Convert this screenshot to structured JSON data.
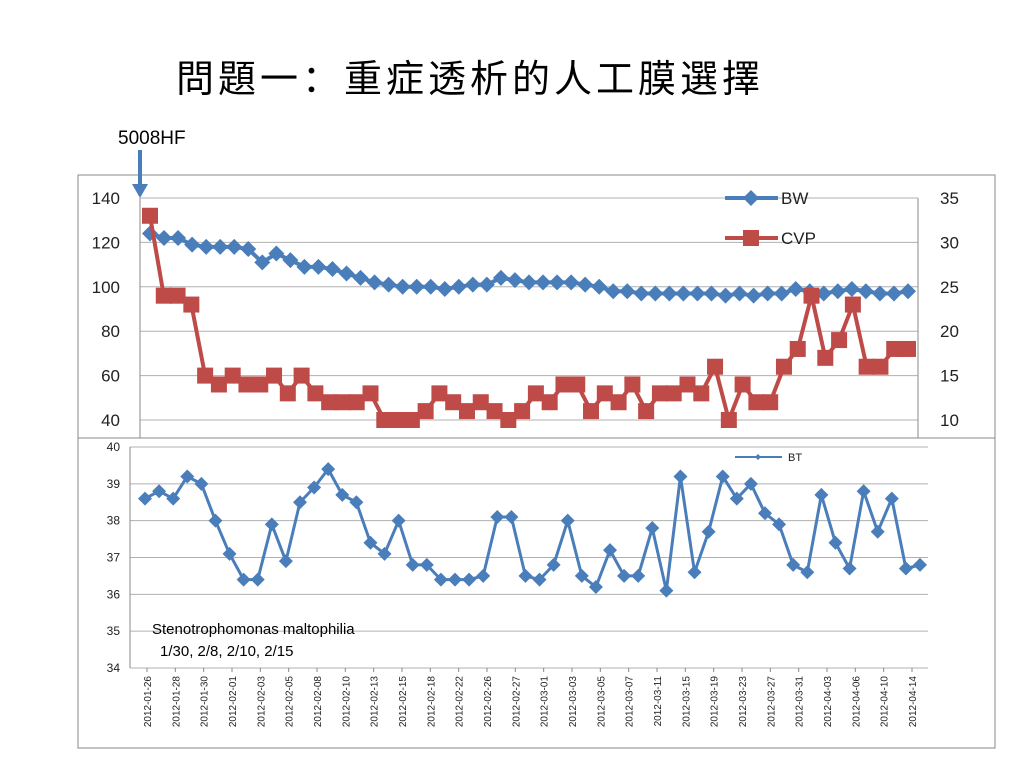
{
  "slide": {
    "title": "問題一：重症透析的人工膜選擇",
    "callout_label": "5008HF",
    "annotation_lines": [
      "Stenotrophomonas maltophilia",
      "1/30, 2/8, 2/10, 2/15"
    ]
  },
  "chart_data": [
    {
      "type": "line",
      "x_ticks": [
        "2012-01-26",
        "2012-01-28",
        "2012-01-30",
        "2012-02-01",
        "2012-02-03",
        "2012-02-05",
        "2012-02-08",
        "2012-02-10",
        "2012-02-13",
        "2012-02-15",
        "2012-02-18",
        "2012-02-22",
        "2012-02-26",
        "2012-02-27",
        "2012-03-01",
        "2012-03-03",
        "2012-03-05",
        "2012-03-07",
        "2012-03-11",
        "2012-03-15",
        "2012-03-19",
        "2012-03-23",
        "2012-03-27",
        "2012-03-31",
        "2012-04-03",
        "2012-04-06",
        "2012-04-10",
        "2012-04-14"
      ],
      "left_axis": {
        "ylim": [
          40,
          140
        ],
        "ticks": [
          40,
          60,
          80,
          100,
          120,
          140
        ]
      },
      "right_axis": {
        "ylim": [
          10,
          35
        ],
        "ticks": [
          10,
          15,
          20,
          25,
          30,
          35
        ]
      },
      "legend": "top-right",
      "series": [
        {
          "name": "BW",
          "axis": "left",
          "color": "#4a7ebb",
          "marker": "diamond",
          "values": [
            124,
            122,
            122,
            119,
            118,
            118,
            118,
            117,
            111,
            115,
            112,
            109,
            109,
            108,
            106,
            104,
            102,
            101,
            100,
            100,
            100,
            99,
            100,
            101,
            101,
            104,
            103,
            102,
            102,
            102,
            102,
            101,
            100,
            98,
            98,
            97,
            97,
            97,
            97,
            97,
            97,
            96,
            97,
            96,
            97,
            97,
            99,
            98,
            97,
            98,
            99,
            98,
            97,
            97,
            98
          ]
        },
        {
          "name": "CVP",
          "axis": "right",
          "color": "#be4b48",
          "marker": "square",
          "values": [
            33,
            24,
            24,
            23,
            15,
            14,
            15,
            14,
            14,
            15,
            13,
            15,
            13,
            12,
            12,
            12,
            13,
            10,
            10,
            10,
            11,
            13,
            12,
            11,
            12,
            11,
            10,
            11,
            13,
            12,
            14,
            14,
            11,
            13,
            12,
            14,
            11,
            13,
            13,
            14,
            13,
            16,
            10,
            14,
            12,
            12,
            16,
            18,
            24,
            17,
            19,
            23,
            16,
            16,
            18,
            18
          ]
        }
      ]
    },
    {
      "type": "line",
      "ylim": [
        34,
        40
      ],
      "y_ticks": [
        34,
        35,
        36,
        37,
        38,
        39,
        40
      ],
      "legend": "top-right",
      "series": [
        {
          "name": "BT",
          "color": "#4a7ebb",
          "marker": "diamond",
          "values": [
            38.6,
            38.8,
            38.6,
            39.2,
            39.0,
            38.0,
            37.1,
            36.4,
            36.4,
            37.9,
            36.9,
            38.5,
            38.9,
            39.4,
            38.7,
            38.5,
            37.4,
            37.1,
            38.0,
            36.8,
            36.8,
            36.4,
            36.4,
            36.4,
            36.5,
            38.1,
            38.1,
            36.5,
            36.4,
            36.8,
            38.0,
            36.5,
            36.2,
            37.2,
            36.5,
            36.5,
            37.8,
            36.1,
            39.2,
            36.6,
            37.7,
            39.2,
            38.6,
            39.0,
            38.2,
            37.9,
            36.8,
            36.6,
            38.7,
            37.4,
            36.7,
            38.8,
            37.7,
            38.6,
            36.7,
            36.8
          ]
        }
      ]
    }
  ]
}
